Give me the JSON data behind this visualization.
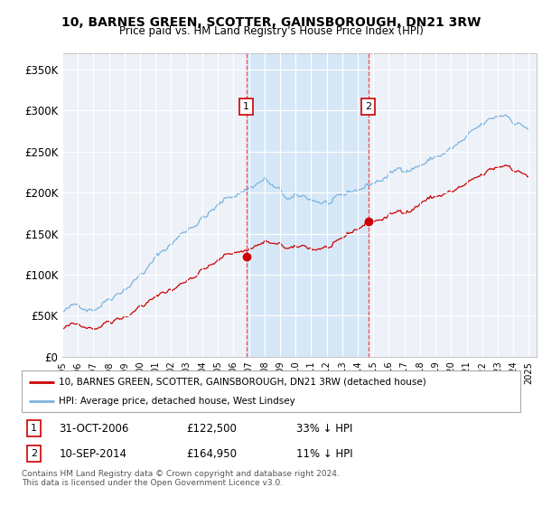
{
  "title": "10, BARNES GREEN, SCOTTER, GAINSBOROUGH, DN21 3RW",
  "subtitle": "Price paid vs. HM Land Registry's House Price Index (HPI)",
  "ylabel_ticks": [
    "£0",
    "£50K",
    "£100K",
    "£150K",
    "£200K",
    "£250K",
    "£300K",
    "£350K"
  ],
  "ytick_values": [
    0,
    50000,
    100000,
    150000,
    200000,
    250000,
    300000,
    350000
  ],
  "ylim": [
    0,
    370000
  ],
  "sale1_price": 122500,
  "sale1_x": 2006.83,
  "sale2_price": 164950,
  "sale2_x": 2014.69,
  "legend_line1": "10, BARNES GREEN, SCOTTER, GAINSBOROUGH, DN21 3RW (detached house)",
  "legend_line2": "HPI: Average price, detached house, West Lindsey",
  "footer": "Contains HM Land Registry data © Crown copyright and database right 2024.\nThis data is licensed under the Open Government Licence v3.0.",
  "hpi_color": "#7ab3e0",
  "price_color": "#cc0000",
  "vline_color": "#ff4444",
  "shade_color": "#d6e8f7",
  "bg_color": "#eef2f8"
}
